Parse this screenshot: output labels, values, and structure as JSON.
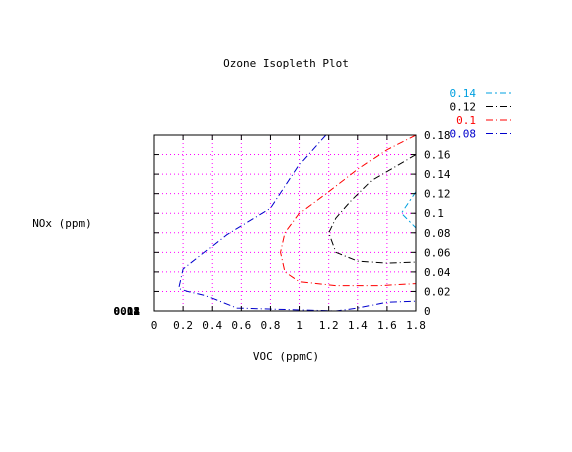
{
  "chart_data": {
    "type": "line",
    "title": "Ozone Isopleth Plot",
    "xlabel": "VOC (ppmC)",
    "ylabel": "NOx (ppm)",
    "xlim": [
      0,
      1.8
    ],
    "ylim": [
      0,
      0.18
    ],
    "x_ticks": [
      "0",
      "0.2",
      "0.4",
      "0.6",
      "0.8",
      "1",
      "1.2",
      "1.4",
      "1.6",
      "1.8"
    ],
    "y_ticks": [
      "0",
      "0.02",
      "0.04",
      "0.06",
      "0.08",
      "0.1",
      "0.12",
      "0.14",
      "0.16",
      "0.18"
    ],
    "grid": true,
    "grid_color": "#ff00ff",
    "legend_position": "top-right",
    "series": [
      {
        "name": "0.14",
        "color": "#00a0e0",
        "dash": "long-short",
        "points": [
          [
            1.8,
            0.122
          ],
          [
            1.7,
            0.1
          ],
          [
            1.8,
            0.085
          ]
        ]
      },
      {
        "name": "0.12",
        "color": "#000000",
        "dash": "dash-dot",
        "points": [
          [
            1.8,
            0.16
          ],
          [
            1.5,
            0.134
          ],
          [
            1.35,
            0.112
          ],
          [
            1.25,
            0.095
          ],
          [
            1.2,
            0.08
          ],
          [
            1.25,
            0.06
          ],
          [
            1.4,
            0.051
          ],
          [
            1.6,
            0.049
          ],
          [
            1.8,
            0.05
          ]
        ]
      },
      {
        "name": "0.1",
        "color": "#ff0000",
        "dash": "dash-dot",
        "points": [
          [
            1.8,
            0.18
          ],
          [
            1.6,
            0.165
          ],
          [
            1.4,
            0.145
          ],
          [
            1.2,
            0.122
          ],
          [
            1.0,
            0.1
          ],
          [
            0.9,
            0.08
          ],
          [
            0.87,
            0.06
          ],
          [
            0.9,
            0.04
          ],
          [
            1.0,
            0.03
          ],
          [
            1.25,
            0.026
          ],
          [
            1.55,
            0.026
          ],
          [
            1.8,
            0.028
          ]
        ]
      },
      {
        "name": "0.08",
        "color": "#0000cc",
        "dash": "dash-dot",
        "points": [
          [
            1.18,
            0.18
          ],
          [
            1.0,
            0.15
          ],
          [
            0.8,
            0.105
          ],
          [
            0.5,
            0.078
          ],
          [
            0.2,
            0.043
          ],
          [
            0.17,
            0.023
          ],
          [
            0.23,
            0.02
          ],
          [
            0.35,
            0.016
          ],
          [
            0.57,
            0.003
          ],
          [
            1.25,
            0.0
          ],
          [
            1.4,
            0.003
          ],
          [
            1.6,
            0.009
          ],
          [
            1.8,
            0.01
          ]
        ]
      }
    ],
    "overlapped_labels": [
      "0.08",
      "0.1",
      "0.12",
      "0.14"
    ]
  }
}
